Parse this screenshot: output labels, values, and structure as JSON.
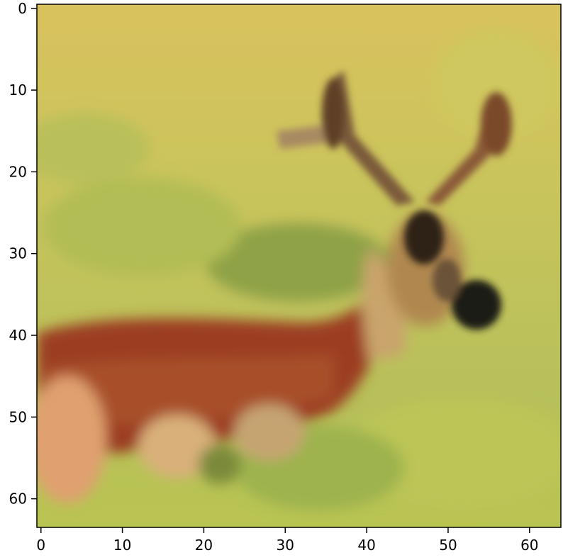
{
  "image": {
    "pixel_grid": [
      64,
      64
    ],
    "subject": "deer in grassy field",
    "palette": {
      "grass_light": "#d6c25a",
      "grass_mid": "#bfc25a",
      "grass_green": "#a9b955",
      "grass_dark": "#8aa048",
      "fur_red": "#9c3c22",
      "fur_brown": "#a55a2e",
      "fur_light": "#d99a6a",
      "antler": "#6b4a2c",
      "antler_dark": "#3a2a1a",
      "eye_dark": "#1f1a12",
      "axis_color": "#000000"
    }
  },
  "axes": {
    "x_ticks": [
      "0",
      "10",
      "20",
      "30",
      "40",
      "50",
      "60"
    ],
    "y_ticks": [
      "0",
      "10",
      "20",
      "30",
      "40",
      "50",
      "60"
    ]
  }
}
